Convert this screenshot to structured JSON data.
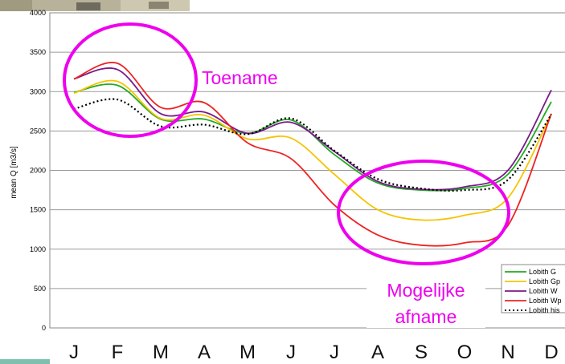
{
  "chart_data": {
    "type": "line",
    "ylabel": "mean Q [m3/s]",
    "ylim": [
      0,
      4000
    ],
    "yticks": [
      0,
      500,
      1000,
      1500,
      2000,
      2500,
      3000,
      3500,
      4000
    ],
    "grid": true,
    "x": [
      "J",
      "F",
      "M",
      "A",
      "M",
      "J",
      "J",
      "A",
      "S",
      "O",
      "N",
      "D"
    ],
    "series": [
      {
        "name": "Lobith G",
        "color": "#22aa22",
        "dash": "solid",
        "values": [
          2990,
          3080,
          2650,
          2650,
          2470,
          2640,
          2200,
          1840,
          1750,
          1770,
          1950,
          2870
        ]
      },
      {
        "name": "Lobith Gp",
        "color": "#f5c400",
        "dash": "solid",
        "values": [
          2980,
          3130,
          2660,
          2700,
          2400,
          2410,
          1950,
          1500,
          1370,
          1430,
          1650,
          2720
        ]
      },
      {
        "name": "Lobith W",
        "color": "#7a1a8a",
        "dash": "solid",
        "values": [
          3160,
          3280,
          2720,
          2740,
          2470,
          2610,
          2240,
          1860,
          1760,
          1790,
          2000,
          3020
        ]
      },
      {
        "name": "Lobith Wp",
        "color": "#ee2222",
        "dash": "solid",
        "values": [
          3160,
          3360,
          2800,
          2860,
          2350,
          2150,
          1560,
          1180,
          1050,
          1080,
          1300,
          2720
        ]
      },
      {
        "name": "Lobith his",
        "color": "#000000",
        "dash": "dotted",
        "values": [
          2780,
          2900,
          2560,
          2580,
          2460,
          2660,
          2250,
          1890,
          1770,
          1750,
          1880,
          2710
        ]
      }
    ],
    "annotations": [
      "Toename",
      "Mogelijke",
      "afname"
    ],
    "legend_position": "bottom-right"
  }
}
